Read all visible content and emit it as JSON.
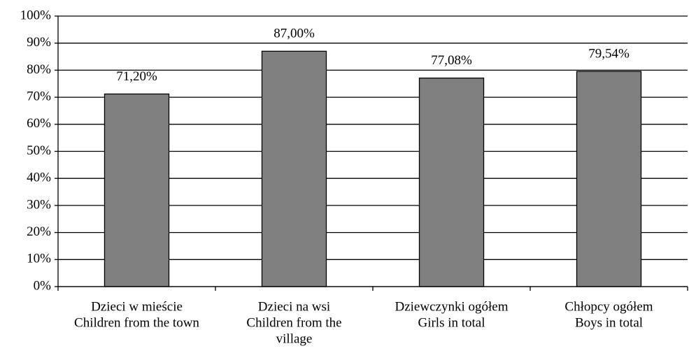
{
  "chart_data": {
    "type": "bar",
    "categories": [
      [
        "Dzieci w mieście",
        "Children from the town"
      ],
      [
        "Dzieci na wsi",
        "Children from the",
        "village"
      ],
      [
        "Dziewczynki ogółem",
        "Girls in total"
      ],
      [
        "Chłopcy ogółem",
        "Boys in total"
      ]
    ],
    "values": [
      71.2,
      87.0,
      77.08,
      79.54
    ],
    "value_labels": [
      "71,20%",
      "87,00%",
      "77,08%",
      "79,54%"
    ],
    "color": "#808080",
    "ylim": [
      0,
      100
    ],
    "yticks": [
      {
        "value": 0,
        "label": "0%"
      },
      {
        "value": 10,
        "label": "10%"
      },
      {
        "value": 20,
        "label": "20%"
      },
      {
        "value": 30,
        "label": "30%"
      },
      {
        "value": 40,
        "label": "40%"
      },
      {
        "value": 50,
        "label": "50%"
      },
      {
        "value": 60,
        "label": "60%"
      },
      {
        "value": 70,
        "label": "70%"
      },
      {
        "value": 80,
        "label": "80%"
      },
      {
        "value": 90,
        "label": "90%"
      },
      {
        "value": 100,
        "label": "100%"
      }
    ],
    "grid": true
  }
}
